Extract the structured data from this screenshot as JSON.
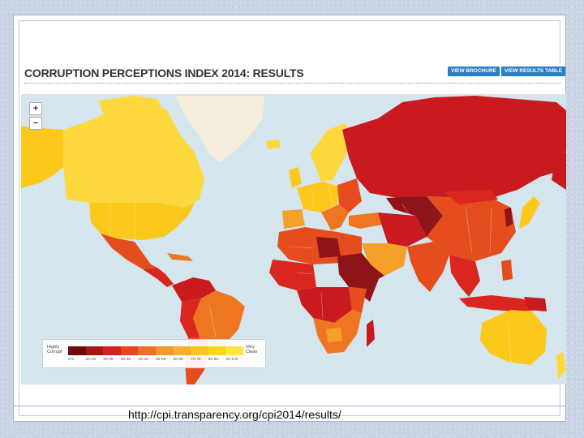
{
  "header": {
    "title": "CORRUPTION PERCEPTIONS INDEX 2014: RESULTS",
    "buttons": {
      "brochure": "VIEW BROCHURE",
      "results_table": "VIEW RESULTS TABLE"
    }
  },
  "map_controls": {
    "zoom_in": "+",
    "zoom_out": "−"
  },
  "legend": {
    "low_label": "Highly Corrupt",
    "high_label": "Very Clean",
    "ranges": [
      "0-9",
      "10-19",
      "20-29",
      "30-39",
      "40-49",
      "50-59",
      "60-69",
      "70-79",
      "80-89",
      "90-100"
    ],
    "colors": [
      "#6e0b0e",
      "#a81515",
      "#d62021",
      "#e8461f",
      "#f0702a",
      "#f4972c",
      "#f8b12a",
      "#fbc71c",
      "#fdd713",
      "#fee73a"
    ]
  },
  "map_palette": {
    "ocean": "#d5e5ee",
    "highly_corrupt": "#8f1419",
    "very_corrupt": "#c81a1f",
    "corrupt": "#d9261e",
    "moderate": "#e54d1f",
    "middle": "#ee7622",
    "fair": "#f4a02a",
    "clean": "#fbc81b",
    "very_clean": "#fdd83d",
    "no_data": "#f5eedc"
  },
  "footer": {
    "url": "http://cpi.transparency.org/cpi2014/results/"
  }
}
